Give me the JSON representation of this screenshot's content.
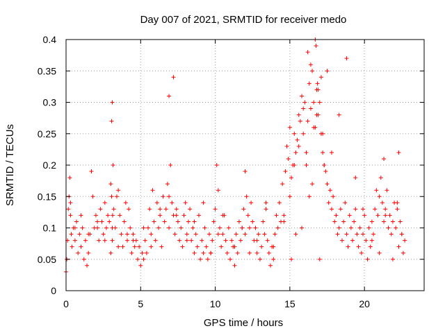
{
  "chart_data": {
    "type": "scatter",
    "title": "Day 007 of 2021, SRMTID for receiver medo",
    "xlabel": "GPS time / hours",
    "ylabel": "SRMTID / TECUs",
    "xlim": [
      0,
      24
    ],
    "ylim": [
      0,
      0.4
    ],
    "xticks": [
      0,
      5,
      10,
      15,
      20
    ],
    "yticks": [
      0,
      0.05,
      0.1,
      0.15,
      0.2,
      0.25,
      0.3,
      0.35,
      0.4
    ],
    "xtick_labels": [
      "0",
      "5",
      "10",
      "15",
      "20"
    ],
    "ytick_labels": [
      "0",
      "0.05",
      "0.1",
      "0.15",
      "0.2",
      "0.25",
      "0.3",
      "0.35",
      "0.4"
    ],
    "grid": true,
    "marker": "+",
    "color": "#ff0000",
    "series": [
      {
        "name": "SRMTID",
        "x": [
          0.0,
          0.1,
          0.15,
          0.2,
          0.25,
          0.3,
          0.35,
          0.4,
          0.5,
          0.6,
          0.7,
          0.8,
          0.9,
          1.0,
          1.1,
          1.2,
          1.3,
          1.4,
          1.5,
          1.6,
          1.7,
          1.8,
          1.9,
          2.0,
          2.1,
          2.2,
          2.3,
          2.4,
          2.5,
          2.6,
          2.7,
          2.8,
          2.9,
          3.0,
          3.05,
          3.1,
          3.15,
          3.2,
          3.3,
          3.4,
          3.5,
          3.6,
          3.7,
          3.8,
          3.9,
          4.0,
          4.1,
          4.2,
          4.3,
          4.4,
          4.5,
          4.6,
          4.7,
          4.8,
          4.9,
          5.0,
          5.1,
          5.2,
          5.3,
          5.4,
          5.5,
          5.6,
          5.7,
          5.8,
          5.9,
          6.0,
          6.1,
          6.2,
          6.3,
          6.4,
          6.5,
          6.6,
          6.7,
          6.8,
          6.9,
          7.0,
          7.1,
          7.2,
          7.3,
          7.4,
          7.5,
          7.6,
          7.7,
          7.8,
          7.9,
          8.0,
          8.1,
          8.2,
          8.3,
          8.4,
          8.5,
          8.6,
          8.7,
          8.8,
          8.9,
          9.0,
          9.1,
          9.2,
          9.3,
          9.4,
          9.5,
          9.6,
          9.7,
          9.8,
          9.9,
          10.0,
          10.1,
          10.2,
          10.3,
          10.4,
          10.5,
          10.6,
          10.7,
          10.8,
          10.9,
          11.0,
          11.1,
          11.2,
          11.3,
          11.4,
          11.5,
          11.6,
          11.7,
          11.8,
          11.9,
          12.0,
          12.1,
          12.2,
          12.3,
          12.4,
          12.5,
          12.6,
          12.7,
          12.8,
          12.9,
          13.0,
          13.1,
          13.2,
          13.3,
          13.4,
          13.5,
          13.6,
          13.7,
          13.8,
          13.9,
          14.0,
          14.1,
          14.2,
          14.3,
          14.4,
          14.5,
          14.6,
          14.7,
          14.8,
          14.9,
          15.0,
          15.1,
          15.2,
          15.3,
          15.4,
          15.5,
          15.6,
          15.7,
          15.8,
          15.9,
          16.0,
          16.1,
          16.2,
          16.3,
          16.4,
          16.5,
          16.6,
          16.7,
          16.8,
          16.9,
          17.0,
          17.1,
          17.2,
          17.3,
          17.4,
          17.5,
          17.6,
          17.7,
          17.8,
          17.9,
          18.0,
          18.1,
          18.2,
          18.3,
          18.4,
          18.5,
          18.6,
          18.7,
          18.8,
          18.9,
          19.0,
          19.1,
          19.2,
          19.3,
          19.4,
          19.5,
          19.6,
          19.7,
          19.8,
          19.9,
          20.0,
          20.1,
          20.2,
          20.3,
          20.4,
          20.5,
          20.6,
          20.7,
          20.8,
          20.9,
          21.0,
          21.1,
          21.2,
          21.3,
          21.4,
          21.5,
          21.6,
          21.7,
          21.8,
          21.9,
          22.0,
          22.1,
          22.2,
          22.3,
          22.4,
          22.5,
          22.6,
          22.7,
          0.05,
          0.3,
          0.6,
          1.0,
          1.5,
          2.1,
          2.6,
          3.0,
          3.1,
          3.5,
          4.1,
          4.5,
          5.2,
          5.7,
          6.3,
          6.9,
          7.4,
          8.1,
          8.6,
          9.2,
          9.7,
          10.2,
          10.5,
          11.3,
          11.8,
          12.3,
          12.8,
          13.4,
          13.9,
          14.6,
          15.1,
          15.4,
          15.8,
          16.1,
          16.3,
          16.5,
          16.6,
          16.8,
          16.9,
          17.2,
          17.5,
          17.8,
          18.3,
          18.8,
          19.4,
          19.9,
          20.5,
          21.0,
          21.4,
          21.9,
          22.2,
          22.5,
          3.05,
          3.1,
          3.12,
          6.9,
          7.2,
          12.0,
          15.0,
          15.3,
          15.6,
          15.9,
          16.2,
          16.4,
          16.7,
          16.75,
          16.85,
          17.0,
          17.1,
          17.3,
          21.3,
          22.3
        ],
        "y": [
          0.03,
          0.08,
          0.13,
          0.15,
          0.18,
          0.12,
          0.09,
          0.07,
          0.1,
          0.08,
          0.11,
          0.06,
          0.09,
          0.07,
          0.1,
          0.05,
          0.08,
          0.04,
          0.06,
          0.09,
          0.19,
          0.15,
          0.1,
          0.12,
          0.1,
          0.08,
          0.13,
          0.11,
          0.09,
          0.14,
          0.1,
          0.12,
          0.11,
          0.17,
          0.27,
          0.3,
          0.2,
          0.13,
          0.1,
          0.15,
          0.16,
          0.12,
          0.09,
          0.07,
          0.11,
          0.14,
          0.08,
          0.13,
          0.1,
          0.06,
          0.09,
          0.07,
          0.08,
          0.05,
          0.07,
          0.04,
          0.06,
          0.05,
          0.08,
          0.06,
          0.1,
          0.13,
          0.09,
          0.16,
          0.11,
          0.08,
          0.14,
          0.1,
          0.12,
          0.07,
          0.15,
          0.11,
          0.13,
          0.17,
          0.1,
          0.2,
          0.14,
          0.12,
          0.09,
          0.13,
          0.11,
          0.08,
          0.1,
          0.07,
          0.12,
          0.14,
          0.09,
          0.11,
          0.13,
          0.08,
          0.1,
          0.06,
          0.09,
          0.07,
          0.12,
          0.05,
          0.08,
          0.06,
          0.1,
          0.07,
          0.05,
          0.09,
          0.06,
          0.08,
          0.11,
          0.13,
          0.2,
          0.16,
          0.1,
          0.07,
          0.09,
          0.12,
          0.08,
          0.06,
          0.1,
          0.05,
          0.08,
          0.07,
          0.04,
          0.09,
          0.06,
          0.11,
          0.08,
          0.1,
          0.13,
          0.09,
          0.15,
          0.12,
          0.1,
          0.14,
          0.11,
          0.08,
          0.1,
          0.06,
          0.09,
          0.05,
          0.07,
          0.11,
          0.09,
          0.13,
          0.08,
          0.06,
          0.04,
          0.07,
          0.05,
          0.09,
          0.12,
          0.1,
          0.14,
          0.11,
          0.17,
          0.12,
          0.19,
          0.23,
          0.21,
          0.26,
          0.18,
          0.2,
          0.25,
          0.22,
          0.24,
          0.28,
          0.27,
          0.31,
          0.25,
          0.3,
          0.22,
          0.27,
          0.33,
          0.29,
          0.35,
          0.3,
          0.26,
          0.32,
          0.28,
          0.3,
          0.25,
          0.22,
          0.2,
          0.19,
          0.17,
          0.14,
          0.16,
          0.13,
          0.15,
          0.11,
          0.12,
          0.09,
          0.1,
          0.13,
          0.08,
          0.11,
          0.14,
          0.09,
          0.07,
          0.12,
          0.1,
          0.08,
          0.11,
          0.13,
          0.09,
          0.07,
          0.1,
          0.06,
          0.09,
          0.12,
          0.08,
          0.05,
          0.1,
          0.07,
          0.11,
          0.09,
          0.13,
          0.16,
          0.12,
          0.15,
          0.18,
          0.14,
          0.11,
          0.13,
          0.16,
          0.1,
          0.12,
          0.09,
          0.11,
          0.14,
          0.1,
          0.13,
          0.07,
          0.11,
          0.09,
          0.06,
          0.08,
          0.05,
          0.14,
          0.1,
          0.12,
          0.09,
          0.11,
          0.08,
          0.06,
          0.1,
          0.07,
          0.09,
          0.08,
          0.1,
          0.07,
          0.13,
          0.15,
          0.12,
          0.08,
          0.11,
          0.14,
          0.06,
          0.09,
          0.12,
          0.07,
          0.1,
          0.06,
          0.08,
          0.14,
          0.07,
          0.11,
          0.05,
          0.09,
          0.1,
          0.2,
          0.15,
          0.17,
          0.26,
          0.28,
          0.32,
          0.25,
          0.35,
          0.22,
          0.28,
          0.37,
          0.18,
          0.13,
          0.08,
          0.06,
          0.12,
          0.05,
          0.14,
          0.09,
          0.15,
          0.08,
          0.12,
          0.31,
          0.34,
          0.19,
          0.15,
          0.2,
          0.23,
          0.29,
          0.38,
          0.36,
          0.4,
          0.39,
          0.33,
          0.05,
          0.34,
          0.2,
          0.21,
          0.22
        ]
      }
    ]
  }
}
